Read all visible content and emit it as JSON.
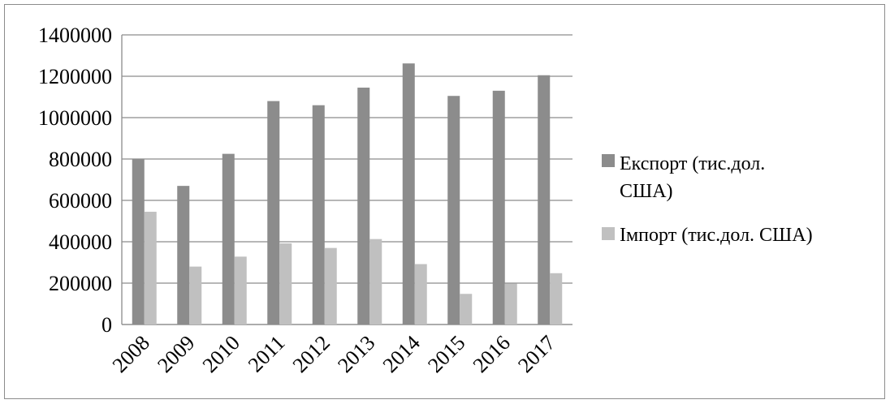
{
  "chart_data": {
    "type": "bar",
    "title": "",
    "xlabel": "",
    "ylabel": "",
    "categories": [
      "2008",
      "2009",
      "2010",
      "2011",
      "2012",
      "2013",
      "2014",
      "2015",
      "2016",
      "2017"
    ],
    "series": [
      {
        "name": "Експорт (тис.дол. США)",
        "legend_lines": [
          "Експорт (тис.дол.",
          "США)"
        ],
        "color": "#8c8c8c",
        "values": [
          800000,
          670000,
          825000,
          1080000,
          1060000,
          1145000,
          1262000,
          1105000,
          1130000,
          1205000
        ]
      },
      {
        "name": "Імпорт (тис.дол. США)",
        "legend_lines": [
          "Імпорт (тис.дол. США)"
        ],
        "color": "#c0c0c0",
        "values": [
          545000,
          280000,
          328000,
          392000,
          370000,
          413000,
          292000,
          148000,
          198000,
          248000
        ]
      }
    ],
    "ylim": [
      0,
      1400000
    ],
    "yticks": [
      "0",
      "200000",
      "400000",
      "600000",
      "800000",
      "1000000",
      "1200000",
      "1400000"
    ],
    "grid": true,
    "legend_position": "right",
    "gridline_color": "#8c8c8c"
  }
}
